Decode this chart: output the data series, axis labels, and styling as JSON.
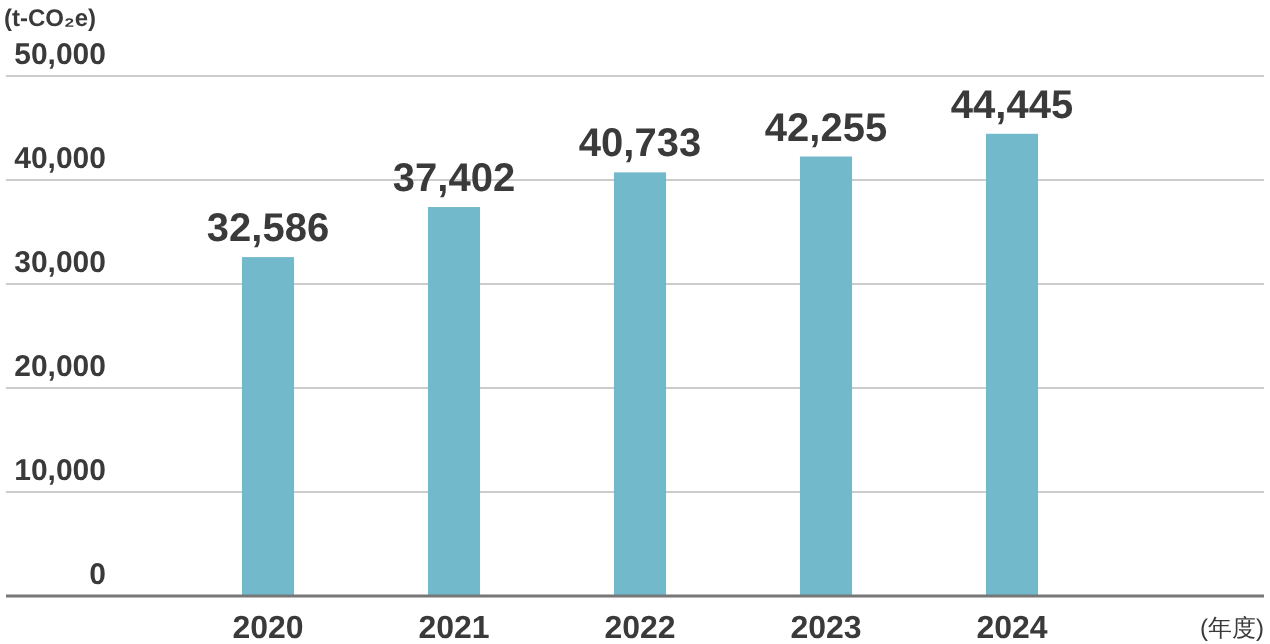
{
  "chart_data": {
    "type": "bar",
    "ylabel": "(t-CO₂e)",
    "xlabel": "(年度)",
    "categories": [
      "2020",
      "2021",
      "2022",
      "2023",
      "2024"
    ],
    "values": [
      32586,
      37402,
      40733,
      42255,
      44445
    ],
    "value_labels": [
      "32,586",
      "37,402",
      "40,733",
      "42,255",
      "44,445"
    ],
    "color": "#72b9cb",
    "ylim": [
      0,
      50000
    ],
    "yticks": [
      {
        "value": 0,
        "label": "0"
      },
      {
        "value": 10000,
        "label": "10,000"
      },
      {
        "value": 20000,
        "label": "20,000"
      },
      {
        "value": 30000,
        "label": "30,000"
      },
      {
        "value": 40000,
        "label": "40,000"
      },
      {
        "value": 50000,
        "label": "50,000"
      }
    ],
    "grid": "y"
  }
}
